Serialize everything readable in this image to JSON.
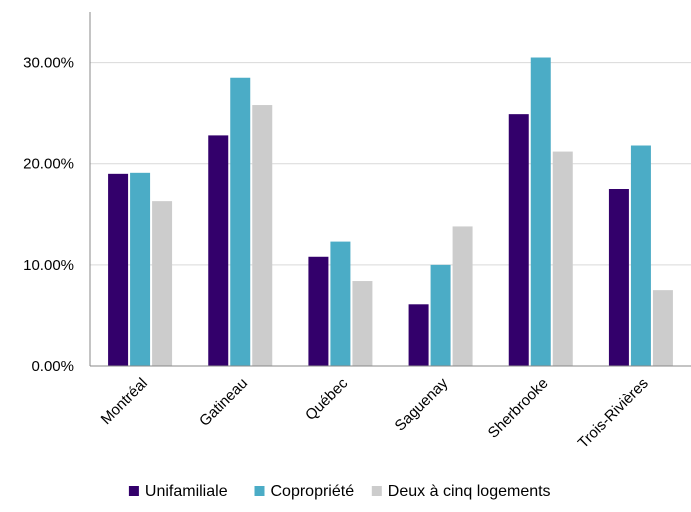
{
  "chart_data": {
    "type": "bar",
    "categories": [
      "Montréal",
      "Gatineau",
      "Québec",
      "Saguenay",
      "Sherbrooke",
      "Trois-Rivières"
    ],
    "series": [
      {
        "name": "Unifamiliale",
        "color": "#33006b",
        "values": [
          19.0,
          22.8,
          10.8,
          6.1,
          24.9,
          17.5
        ]
      },
      {
        "name": "Copropriété",
        "color": "#4bacc6",
        "values": [
          19.1,
          28.5,
          12.3,
          10.0,
          30.5,
          21.8
        ]
      },
      {
        "name": "Deux à cinq logements",
        "color": "#cccccc",
        "values": [
          16.3,
          25.8,
          8.4,
          13.8,
          21.2,
          7.5
        ]
      }
    ],
    "yticks": [
      "0.00%",
      "10.00%",
      "20.00%",
      "30.00%"
    ],
    "ytick_values": [
      0,
      10,
      20,
      30
    ],
    "ylim": [
      0,
      35
    ],
    "grid": true,
    "legend_position": "bottom",
    "title": "",
    "xlabel": "",
    "ylabel": ""
  }
}
